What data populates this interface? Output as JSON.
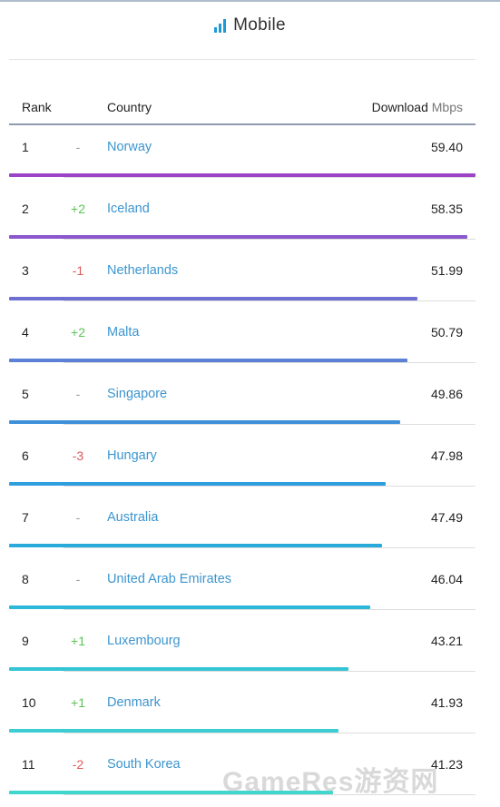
{
  "header": {
    "title": "Mobile",
    "icon": "signal-bars-icon",
    "accent": "#1e9bd7"
  },
  "columns": {
    "rank": "Rank",
    "country": "Country",
    "download": "Download",
    "unit": "Mbps"
  },
  "rows": [
    {
      "rank": "1",
      "change": "-",
      "country": "Norway",
      "speed": "59.40",
      "value": 59.4,
      "color": "#9b44c8"
    },
    {
      "rank": "2",
      "change": "+2",
      "country": "Iceland",
      "speed": "58.35",
      "value": 58.35,
      "color": "#8a57cc"
    },
    {
      "rank": "3",
      "change": "-1",
      "country": "Netherlands",
      "speed": "51.99",
      "value": 51.99,
      "color": "#6f6fd2"
    },
    {
      "rank": "4",
      "change": "+2",
      "country": "Malta",
      "speed": "50.79",
      "value": 50.79,
      "color": "#5b80d6"
    },
    {
      "rank": "5",
      "change": "-",
      "country": "Singapore",
      "speed": "49.86",
      "value": 49.86,
      "color": "#3e90da"
    },
    {
      "rank": "6",
      "change": "-3",
      "country": "Hungary",
      "speed": "47.98",
      "value": 47.98,
      "color": "#2f9edc"
    },
    {
      "rank": "7",
      "change": "-",
      "country": "Australia",
      "speed": "47.49",
      "value": 47.49,
      "color": "#28aadb"
    },
    {
      "rank": "8",
      "change": "-",
      "country": "United Arab Emirates",
      "speed": "46.04",
      "value": 46.04,
      "color": "#2cb8d8"
    },
    {
      "rank": "9",
      "change": "+1",
      "country": "Luxembourg",
      "speed": "43.21",
      "value": 43.21,
      "color": "#35c4d5"
    },
    {
      "rank": "10",
      "change": "+1",
      "country": "Denmark",
      "speed": "41.93",
      "value": 41.93,
      "color": "#3bcdd3"
    },
    {
      "rank": "11",
      "change": "-2",
      "country": "South Korea",
      "speed": "41.23",
      "value": 41.23,
      "color": "#3fd6ce"
    }
  ],
  "max_value": 59.4,
  "watermark": "GameRes游资网"
}
